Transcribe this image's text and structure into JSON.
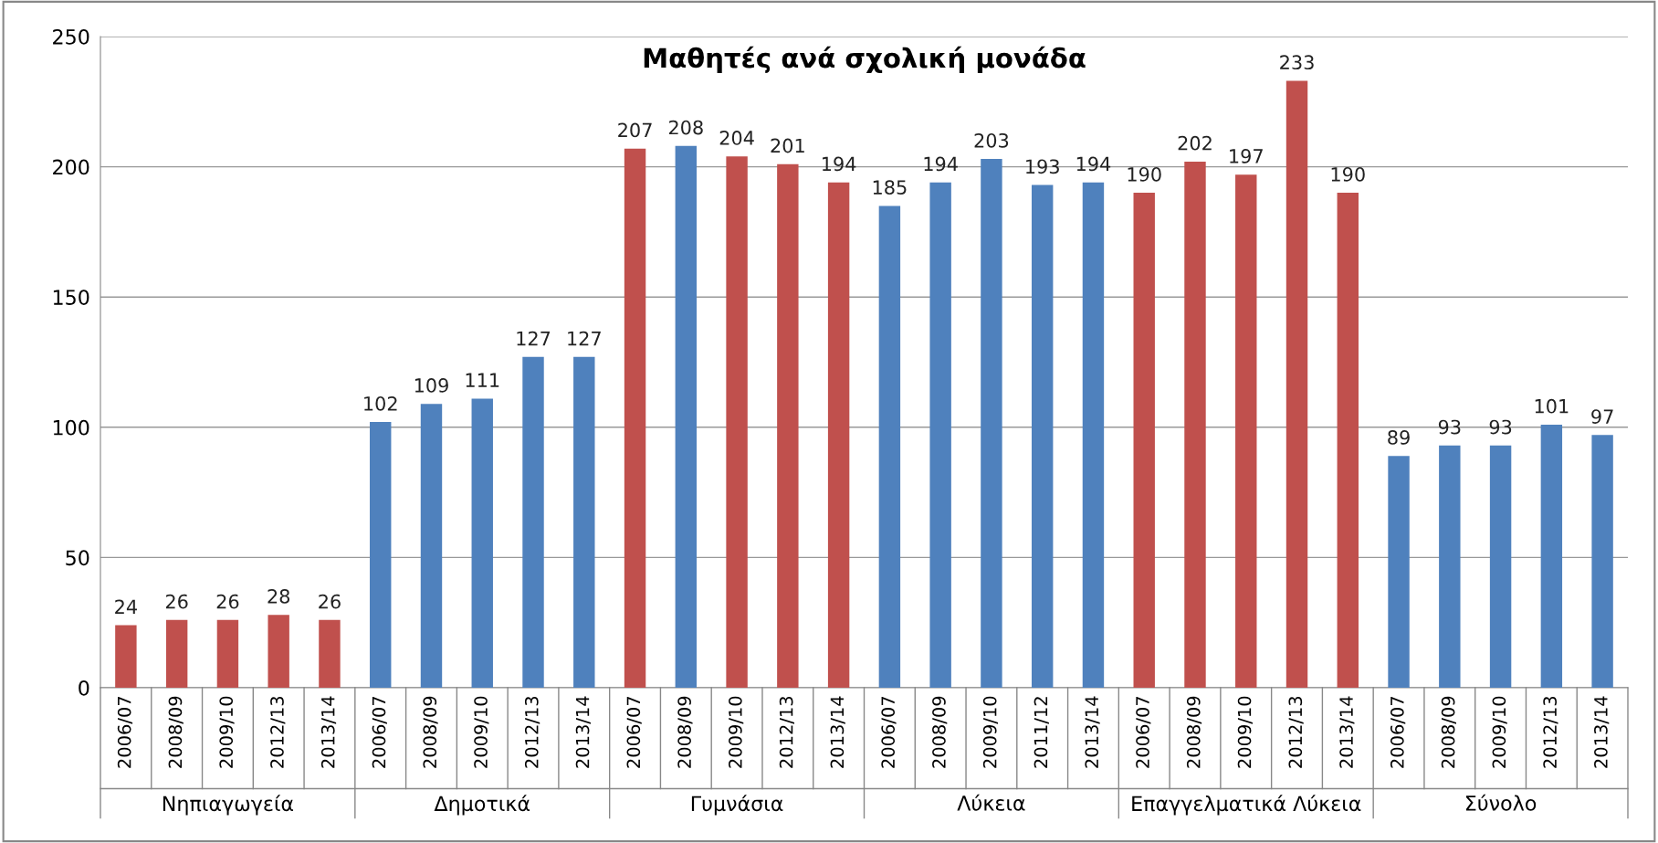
{
  "chart_data": {
    "type": "bar",
    "title": "Μαθητές ανά σχολική μονάδα",
    "categories": [
      "2006/07",
      "2008/09",
      "2009/10",
      "2012/13",
      "2013/14",
      "2006/07",
      "2008/09",
      "2009/10",
      "2012/13",
      "2013/14",
      "2006/07",
      "2008/09",
      "2009/10",
      "2012/13",
      "2013/14",
      "2006/07",
      "2008/09",
      "2009/10",
      "2011/12",
      "2013/14",
      "2006/07",
      "2008/09",
      "2009/10",
      "2012/13",
      "2013/14",
      "2006/07",
      "2008/09",
      "2009/10",
      "2012/13",
      "2013/14"
    ],
    "values": [
      24,
      26,
      26,
      28,
      26,
      102,
      109,
      111,
      127,
      127,
      207,
      208,
      204,
      201,
      194,
      185,
      194,
      203,
      193,
      194,
      190,
      202,
      197,
      233,
      190,
      89,
      93,
      93,
      101,
      97
    ],
    "colors": [
      "#c0504d",
      "#c0504d",
      "#c0504d",
      "#c0504d",
      "#c0504d",
      "#4f81bd",
      "#4f81bd",
      "#4f81bd",
      "#4f81bd",
      "#4f81bd",
      "#c0504d",
      "#4f81bd",
      "#c0504d",
      "#c0504d",
      "#c0504d",
      "#4f81bd",
      "#4f81bd",
      "#4f81bd",
      "#4f81bd",
      "#4f81bd",
      "#c0504d",
      "#c0504d",
      "#c0504d",
      "#c0504d",
      "#c0504d",
      "#4f81bd",
      "#4f81bd",
      "#4f81bd",
      "#4f81bd",
      "#4f81bd"
    ],
    "annotations": [
      "Νηπιαγωγεία",
      "Δημοτικά",
      "Γυμνάσια",
      "Λύκεια",
      "Επαγγελματικά Λύκεια",
      "Σύνολο"
    ],
    "ylim": [
      0,
      250
    ],
    "yticks": [
      0,
      50,
      100,
      150,
      200,
      250
    ],
    "grid": "y",
    "data_labels": true
  }
}
